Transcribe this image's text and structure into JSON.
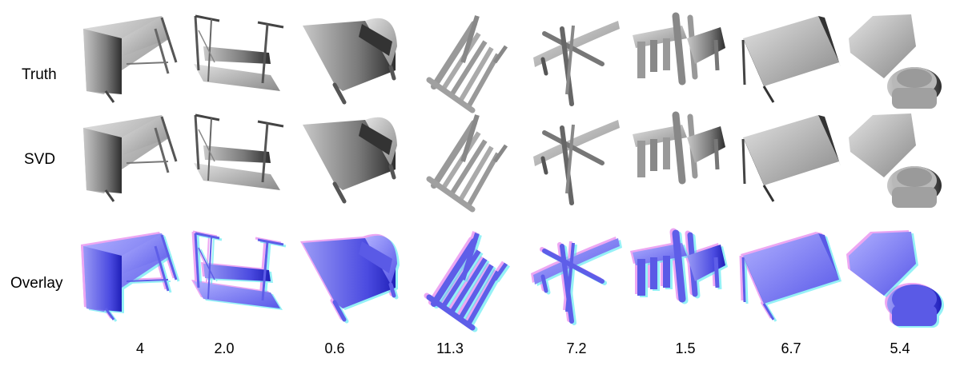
{
  "row_labels": {
    "truth": "Truth",
    "svd": "SVD",
    "overlay": "Overlay"
  },
  "columns": [
    {
      "object": "desk",
      "error": "4"
    },
    {
      "object": "table",
      "error": "2.0"
    },
    {
      "object": "chair",
      "error": "0.6"
    },
    {
      "object": "chair",
      "error": "11.3"
    },
    {
      "object": "folding-chair",
      "error": "7.2"
    },
    {
      "object": "chair",
      "error": "1.5"
    },
    {
      "object": "table",
      "error": "6.7"
    },
    {
      "object": "toilet",
      "error": "5.4"
    }
  ],
  "colors": {
    "render_gray": "#a8a8a8",
    "render_dark": "#3a3a3a",
    "overlay_blue": "#7f7ff2",
    "overlay_magenta": "#e060e8",
    "overlay_cyan": "#40e6f0"
  }
}
